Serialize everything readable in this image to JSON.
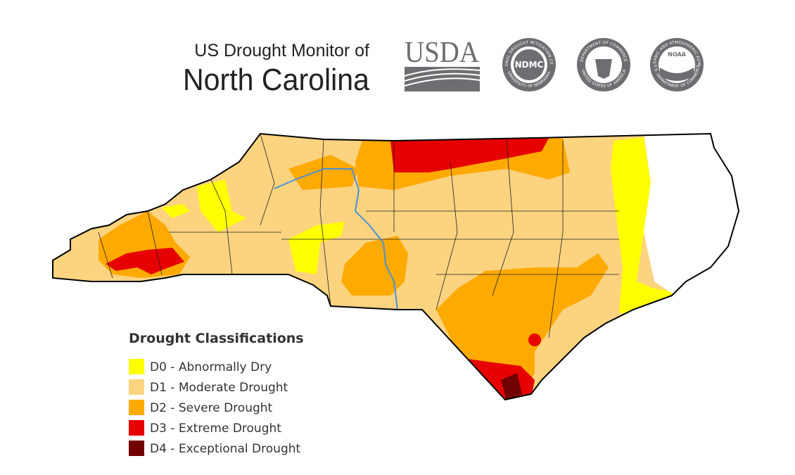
{
  "header": {
    "title_line1": "US Drought Monitor of",
    "title_line2": "North Carolina"
  },
  "logos": {
    "usda": "USDA",
    "ndmc": {
      "label": "NDMC",
      "ring_top": "NATIONAL DROUGHT MITIGATION CENTER",
      "ring_bottom": "UNIVERSITY OF NEBRASKA"
    },
    "commerce": {
      "ring_top": "DEPARTMENT OF COMMERCE",
      "ring_bottom": "UNITED STATES OF AMERICA"
    },
    "noaa": {
      "label": "NOAA",
      "ring_top": "NATIONAL OCEANIC AND ATMOSPHERIC ADMINISTRATION",
      "ring_bottom": "U.S. DEPARTMENT OF COMMERCE"
    }
  },
  "legend": {
    "title": "Drought Classifications",
    "items": [
      {
        "label": "D0 - Abnormally Dry",
        "color": "#ffff00"
      },
      {
        "label": "D1 - Moderate Drought",
        "color": "#fcd37f"
      },
      {
        "label": "D2 - Severe Drought",
        "color": "#ffaa00"
      },
      {
        "label": "D3 - Extreme Drought",
        "color": "#e60000"
      },
      {
        "label": "D4 - Exceptional Drought",
        "color": "#730000"
      }
    ]
  }
}
